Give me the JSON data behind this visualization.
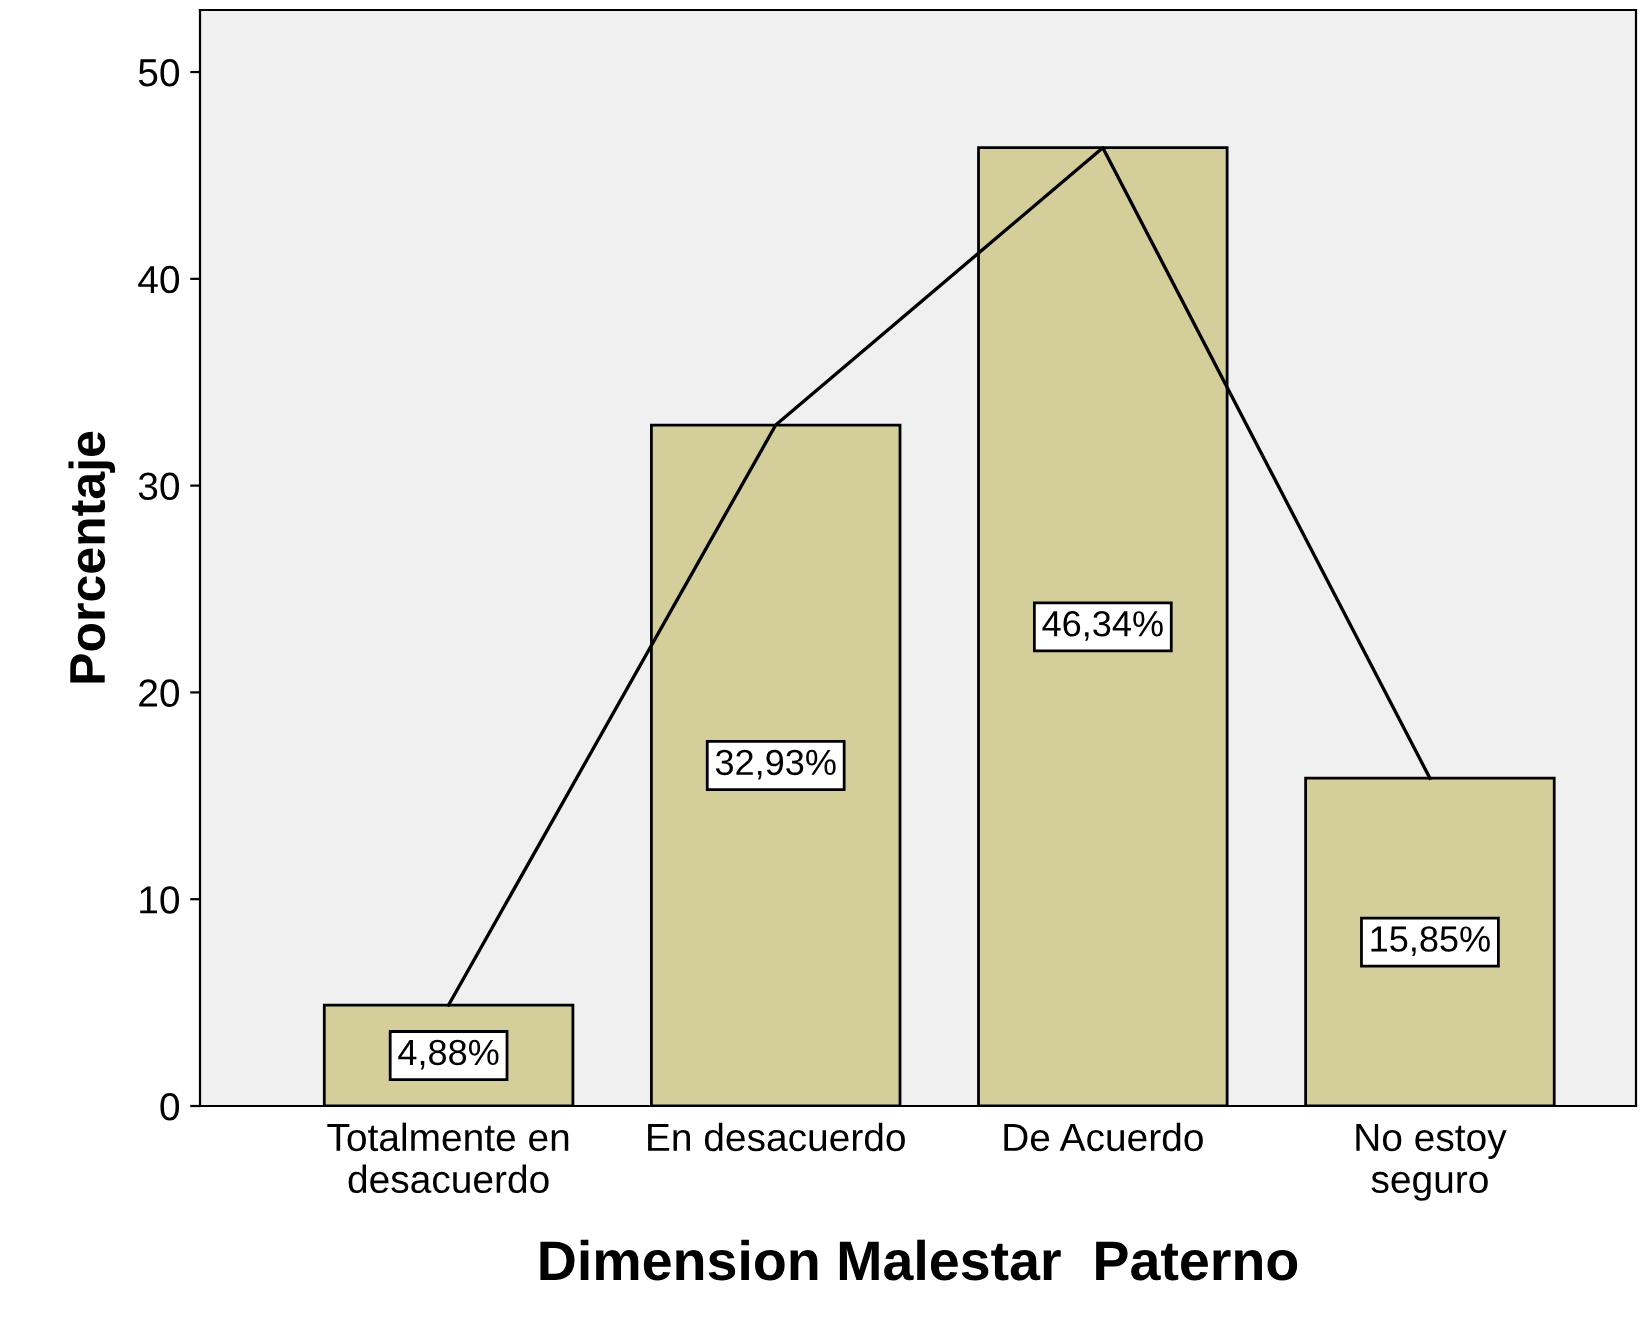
{
  "chart_data": {
    "type": "bar",
    "xlabel": "Dimension Malestar  Paterno",
    "ylabel": "Porcentaje",
    "categories": [
      "Totalmente en\ndesacuerdo",
      "En desacuerdo",
      "De Acuerdo",
      "No estoy\nseguro"
    ],
    "series": [
      {
        "color": "#d3ce9a",
        "values": [
          4.88,
          32.93,
          46.34,
          15.85
        ],
        "value_labels": [
          "4,88%",
          "32,93%",
          "46,34%",
          "15,85%"
        ]
      },
      {
        "type": "line",
        "color": "#000000",
        "values": [
          4.88,
          32.93,
          46.34,
          15.85
        ]
      }
    ],
    "ylim": [
      0,
      53
    ],
    "yticks": [
      0,
      10,
      20,
      30,
      40,
      50
    ],
    "grid": false,
    "legend": false,
    "marker": "none"
  }
}
